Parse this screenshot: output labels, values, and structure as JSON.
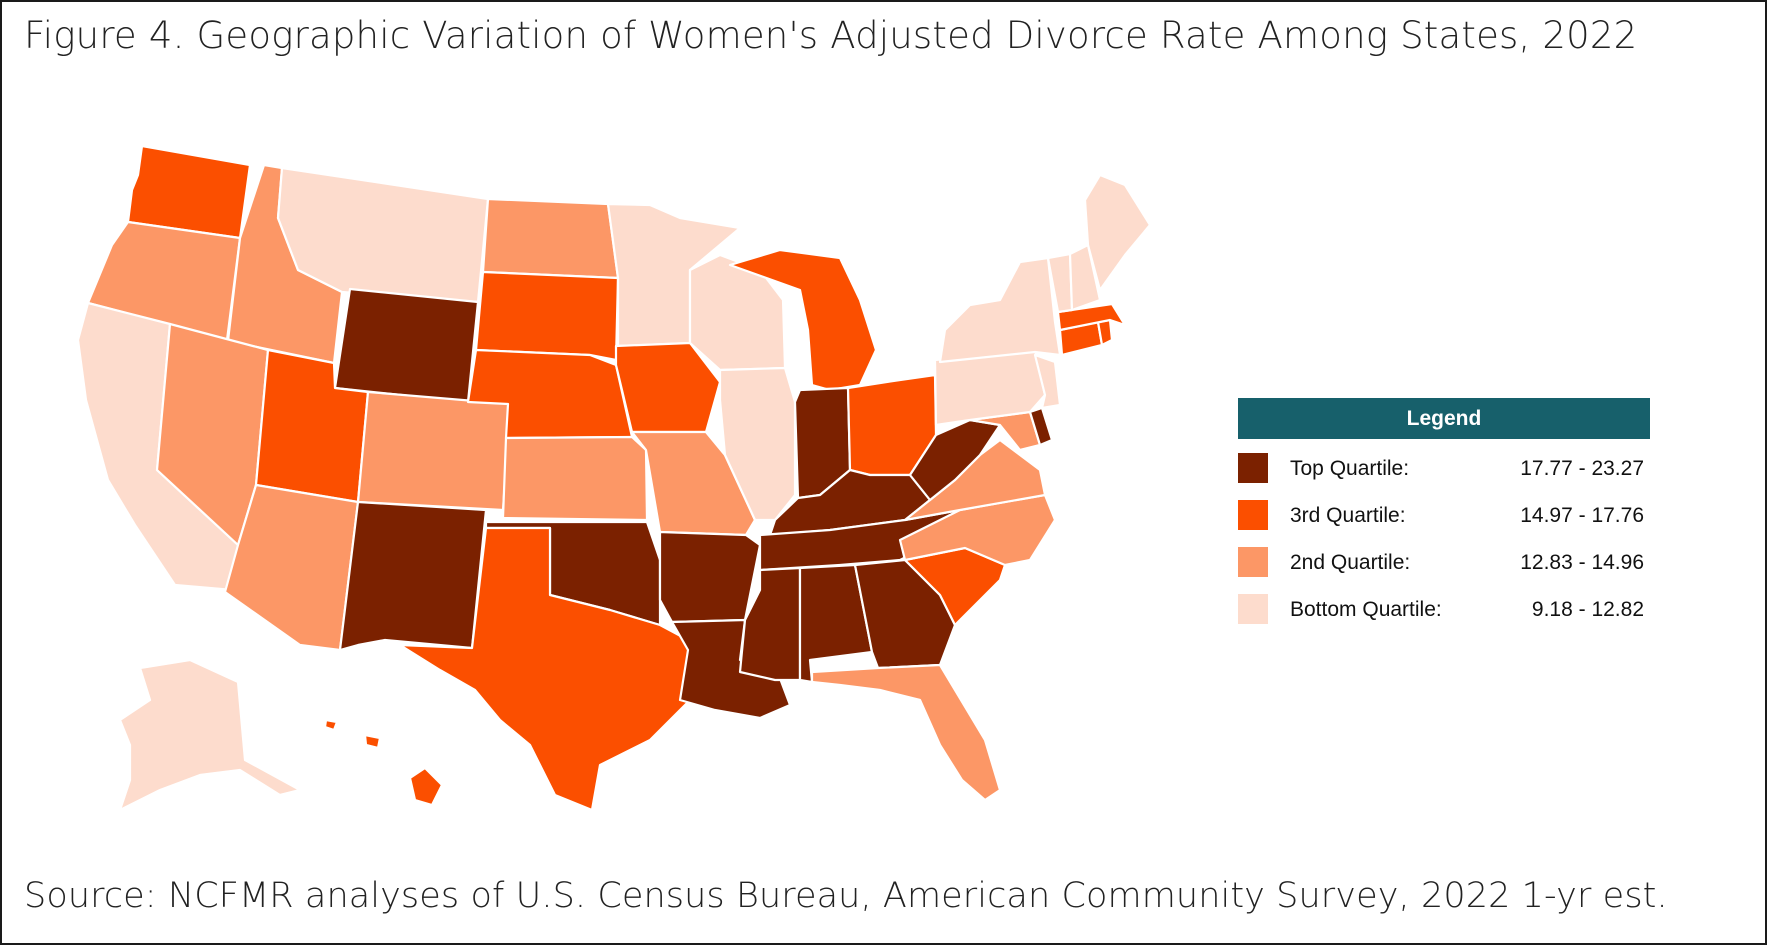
{
  "title": "Figure 4.  Geographic Variation of Women's Adjusted Divorce Rate Among States, 2022",
  "source": "Source: NCFMR analyses of U.S. Census Bureau, American Community Survey, 2022 1-yr est.",
  "legend": {
    "heading": "Legend",
    "items": [
      {
        "label": "Top Quartile:",
        "range": "17.77  -  23.27",
        "color": "#7b2100"
      },
      {
        "label": "3rd Quartile:",
        "range": "14.97  -  17.76",
        "color": "#fb4f00"
      },
      {
        "label": "2nd Quartile:",
        "range": "12.83  -  14.96",
        "color": "#fc9766"
      },
      {
        "label": "Bottom Quartile:",
        "range": "9.18  -  12.82",
        "color": "#fddccd"
      }
    ]
  },
  "states": [
    {
      "name": "Washington",
      "quartile": 2
    },
    {
      "name": "Oregon",
      "quartile": 3
    },
    {
      "name": "California",
      "quartile": 4
    },
    {
      "name": "Idaho",
      "quartile": 3
    },
    {
      "name": "Nevada",
      "quartile": 3
    },
    {
      "name": "Montana",
      "quartile": 4
    },
    {
      "name": "Wyoming",
      "quartile": 1
    },
    {
      "name": "Utah",
      "quartile": 2
    },
    {
      "name": "Arizona",
      "quartile": 3
    },
    {
      "name": "Colorado",
      "quartile": 3
    },
    {
      "name": "New Mexico",
      "quartile": 1
    },
    {
      "name": "North Dakota",
      "quartile": 3
    },
    {
      "name": "South Dakota",
      "quartile": 2
    },
    {
      "name": "Nebraska",
      "quartile": 2
    },
    {
      "name": "Kansas",
      "quartile": 3
    },
    {
      "name": "Oklahoma",
      "quartile": 1
    },
    {
      "name": "Texas",
      "quartile": 2
    },
    {
      "name": "Minnesota",
      "quartile": 4
    },
    {
      "name": "Iowa",
      "quartile": 2
    },
    {
      "name": "Missouri",
      "quartile": 3
    },
    {
      "name": "Arkansas",
      "quartile": 1
    },
    {
      "name": "Louisiana",
      "quartile": 1
    },
    {
      "name": "Wisconsin",
      "quartile": 4
    },
    {
      "name": "Illinois",
      "quartile": 4
    },
    {
      "name": "Michigan",
      "quartile": 2
    },
    {
      "name": "Indiana",
      "quartile": 1
    },
    {
      "name": "Ohio",
      "quartile": 2
    },
    {
      "name": "Kentucky",
      "quartile": 1
    },
    {
      "name": "Tennessee",
      "quartile": 1
    },
    {
      "name": "Mississippi",
      "quartile": 1
    },
    {
      "name": "Alabama",
      "quartile": 1
    },
    {
      "name": "Georgia",
      "quartile": 1
    },
    {
      "name": "Florida",
      "quartile": 3
    },
    {
      "name": "South Carolina",
      "quartile": 2
    },
    {
      "name": "North Carolina",
      "quartile": 3
    },
    {
      "name": "Virginia",
      "quartile": 3
    },
    {
      "name": "West Virginia",
      "quartile": 1
    },
    {
      "name": "Maryland",
      "quartile": 3
    },
    {
      "name": "Delaware",
      "quartile": 1
    },
    {
      "name": "Pennsylvania",
      "quartile": 4
    },
    {
      "name": "New Jersey",
      "quartile": 4
    },
    {
      "name": "New York",
      "quartile": 4
    },
    {
      "name": "Connecticut",
      "quartile": 2
    },
    {
      "name": "Rhode Island",
      "quartile": 2
    },
    {
      "name": "Massachusetts",
      "quartile": 2
    },
    {
      "name": "Vermont",
      "quartile": 4
    },
    {
      "name": "New Hampshire",
      "quartile": 4
    },
    {
      "name": "Maine",
      "quartile": 4
    },
    {
      "name": "Alaska",
      "quartile": 4
    },
    {
      "name": "Hawaii",
      "quartile": 2
    }
  ]
}
